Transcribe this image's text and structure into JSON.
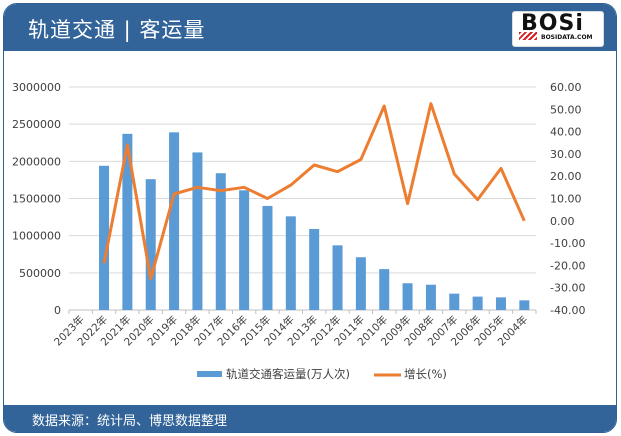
{
  "header": {
    "title": "轨道交通 | 客运量",
    "logo_text": "BOSi",
    "logo_subtext": "BOSIDATA.COM"
  },
  "footer": {
    "source": "数据来源：统计局、博思数据整理"
  },
  "colors": {
    "header_bg": "#326499",
    "bar": "#5b9bd5",
    "line": "#ed7d31",
    "grid": "#d9d9d9"
  },
  "chart_data": {
    "type": "bar+line",
    "title": "轨道交通 | 客运量",
    "categories": [
      "2023年",
      "2022年",
      "2021年",
      "2020年",
      "2019年",
      "2018年",
      "2017年",
      "2016年",
      "2015年",
      "2014年",
      "2013年",
      "2012年",
      "2011年",
      "2010年",
      "2009年",
      "2008年",
      "2007年",
      "2006年",
      "2005年",
      "2004年"
    ],
    "series": [
      {
        "name": "轨道交通客运量(万人次)",
        "type": "bar",
        "axis": "left",
        "values": [
          null,
          1940000,
          2370000,
          1760000,
          2390000,
          2120000,
          1840000,
          1610000,
          1400000,
          1260000,
          1090000,
          870000,
          710000,
          550000,
          360000,
          340000,
          220000,
          180000,
          170000,
          130000
        ]
      },
      {
        "name": "增长(%)",
        "type": "line",
        "axis": "right",
        "values": [
          null,
          -19.0,
          34.0,
          -26.0,
          12.0,
          15.0,
          13.5,
          15.0,
          10.0,
          16.0,
          25.0,
          22.0,
          27.5,
          51.5,
          7.7,
          52.5,
          21.0,
          9.5,
          23.5,
          0.0
        ]
      }
    ],
    "left_axis": {
      "ylim": [
        0,
        3000000
      ],
      "ticks": [
        "0",
        "500000",
        "1000000",
        "1500000",
        "2000000",
        "2500000",
        "3000000"
      ]
    },
    "right_axis": {
      "ylim": [
        -40,
        60
      ],
      "ticks": [
        "-40.00",
        "-30.00",
        "-20.00",
        "-10.00",
        "0.00",
        "10.00",
        "20.00",
        "30.00",
        "40.00",
        "50.00",
        "60.00"
      ]
    },
    "xlabel": "",
    "ylabel": "",
    "grid": true,
    "legend_position": "bottom",
    "legend": [
      "轨道交通客运量(万人次)",
      "增长(%)"
    ]
  }
}
